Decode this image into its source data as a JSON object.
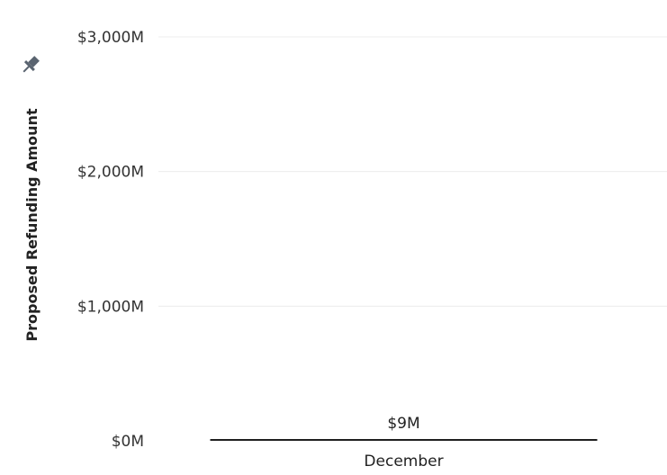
{
  "chart_data": {
    "type": "bar",
    "categories": [
      "December"
    ],
    "values": [
      9
    ],
    "value_labels": [
      "$9M"
    ],
    "ylabel": "Proposed Refunding Amount",
    "ylim": [
      0,
      3000
    ],
    "yticks": [
      0,
      1000,
      2000,
      3000
    ],
    "ytick_labels": [
      "$0M",
      "$1,000M",
      "$2,000M",
      "$3,000M"
    ],
    "grid": true,
    "bar_color": "#1f1f1f",
    "pin_icon": "pin-icon"
  }
}
